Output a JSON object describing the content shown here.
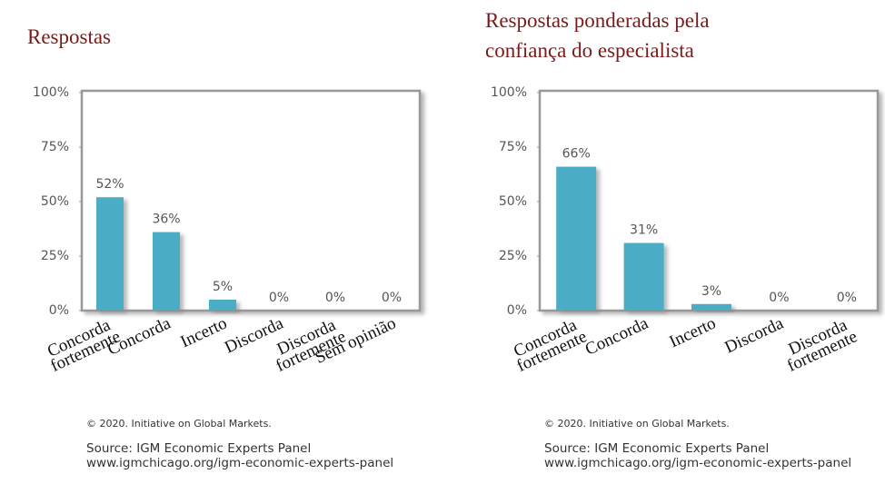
{
  "chart_data": [
    {
      "type": "bar",
      "title": "Respostas",
      "categories": [
        "Concorda\nfortemente",
        "Concorda",
        "Incerto",
        "Discorda",
        "Discorda\nfortemente",
        "Sem opinião"
      ],
      "values": [
        52,
        36,
        5,
        0,
        0,
        0
      ],
      "value_labels": [
        "52%",
        "36%",
        "5%",
        "0%",
        "0%",
        "0%"
      ],
      "color": "#4bacc6",
      "ylim": [
        0,
        100
      ],
      "yticks": [
        {
          "value": 0,
          "label": "0%"
        },
        {
          "value": 25,
          "label": "25%"
        },
        {
          "value": 50,
          "label": "50%"
        },
        {
          "value": 75,
          "label": "75%"
        },
        {
          "value": 100,
          "label": "100%"
        }
      ],
      "copyright": "© 2020. Initiative on Global Markets.",
      "source": "Source: IGM Economic Experts Panel www.igmchicago.org/igm-economic-experts-panel"
    },
    {
      "type": "bar",
      "title": "Respostas ponderadas pela\nconfiança do especialista",
      "categories": [
        "Concorda\nfortemente",
        "Concorda",
        "Incerto",
        "Discorda",
        "Discorda\nfortemente"
      ],
      "values": [
        66,
        31,
        3,
        0,
        0
      ],
      "value_labels": [
        "66%",
        "31%",
        "3%",
        "0%",
        "0%"
      ],
      "color": "#4bacc6",
      "ylim": [
        0,
        100
      ],
      "yticks": [
        {
          "value": 0,
          "label": "0%"
        },
        {
          "value": 25,
          "label": "25%"
        },
        {
          "value": 50,
          "label": "50%"
        },
        {
          "value": 75,
          "label": "75%"
        },
        {
          "value": 100,
          "label": "100%"
        }
      ],
      "copyright": "© 2020. Initiative on Global Markets.",
      "source": "Source: IGM Economic Experts Panel www.igmchicago.org/igm-economic-experts-panel"
    }
  ]
}
